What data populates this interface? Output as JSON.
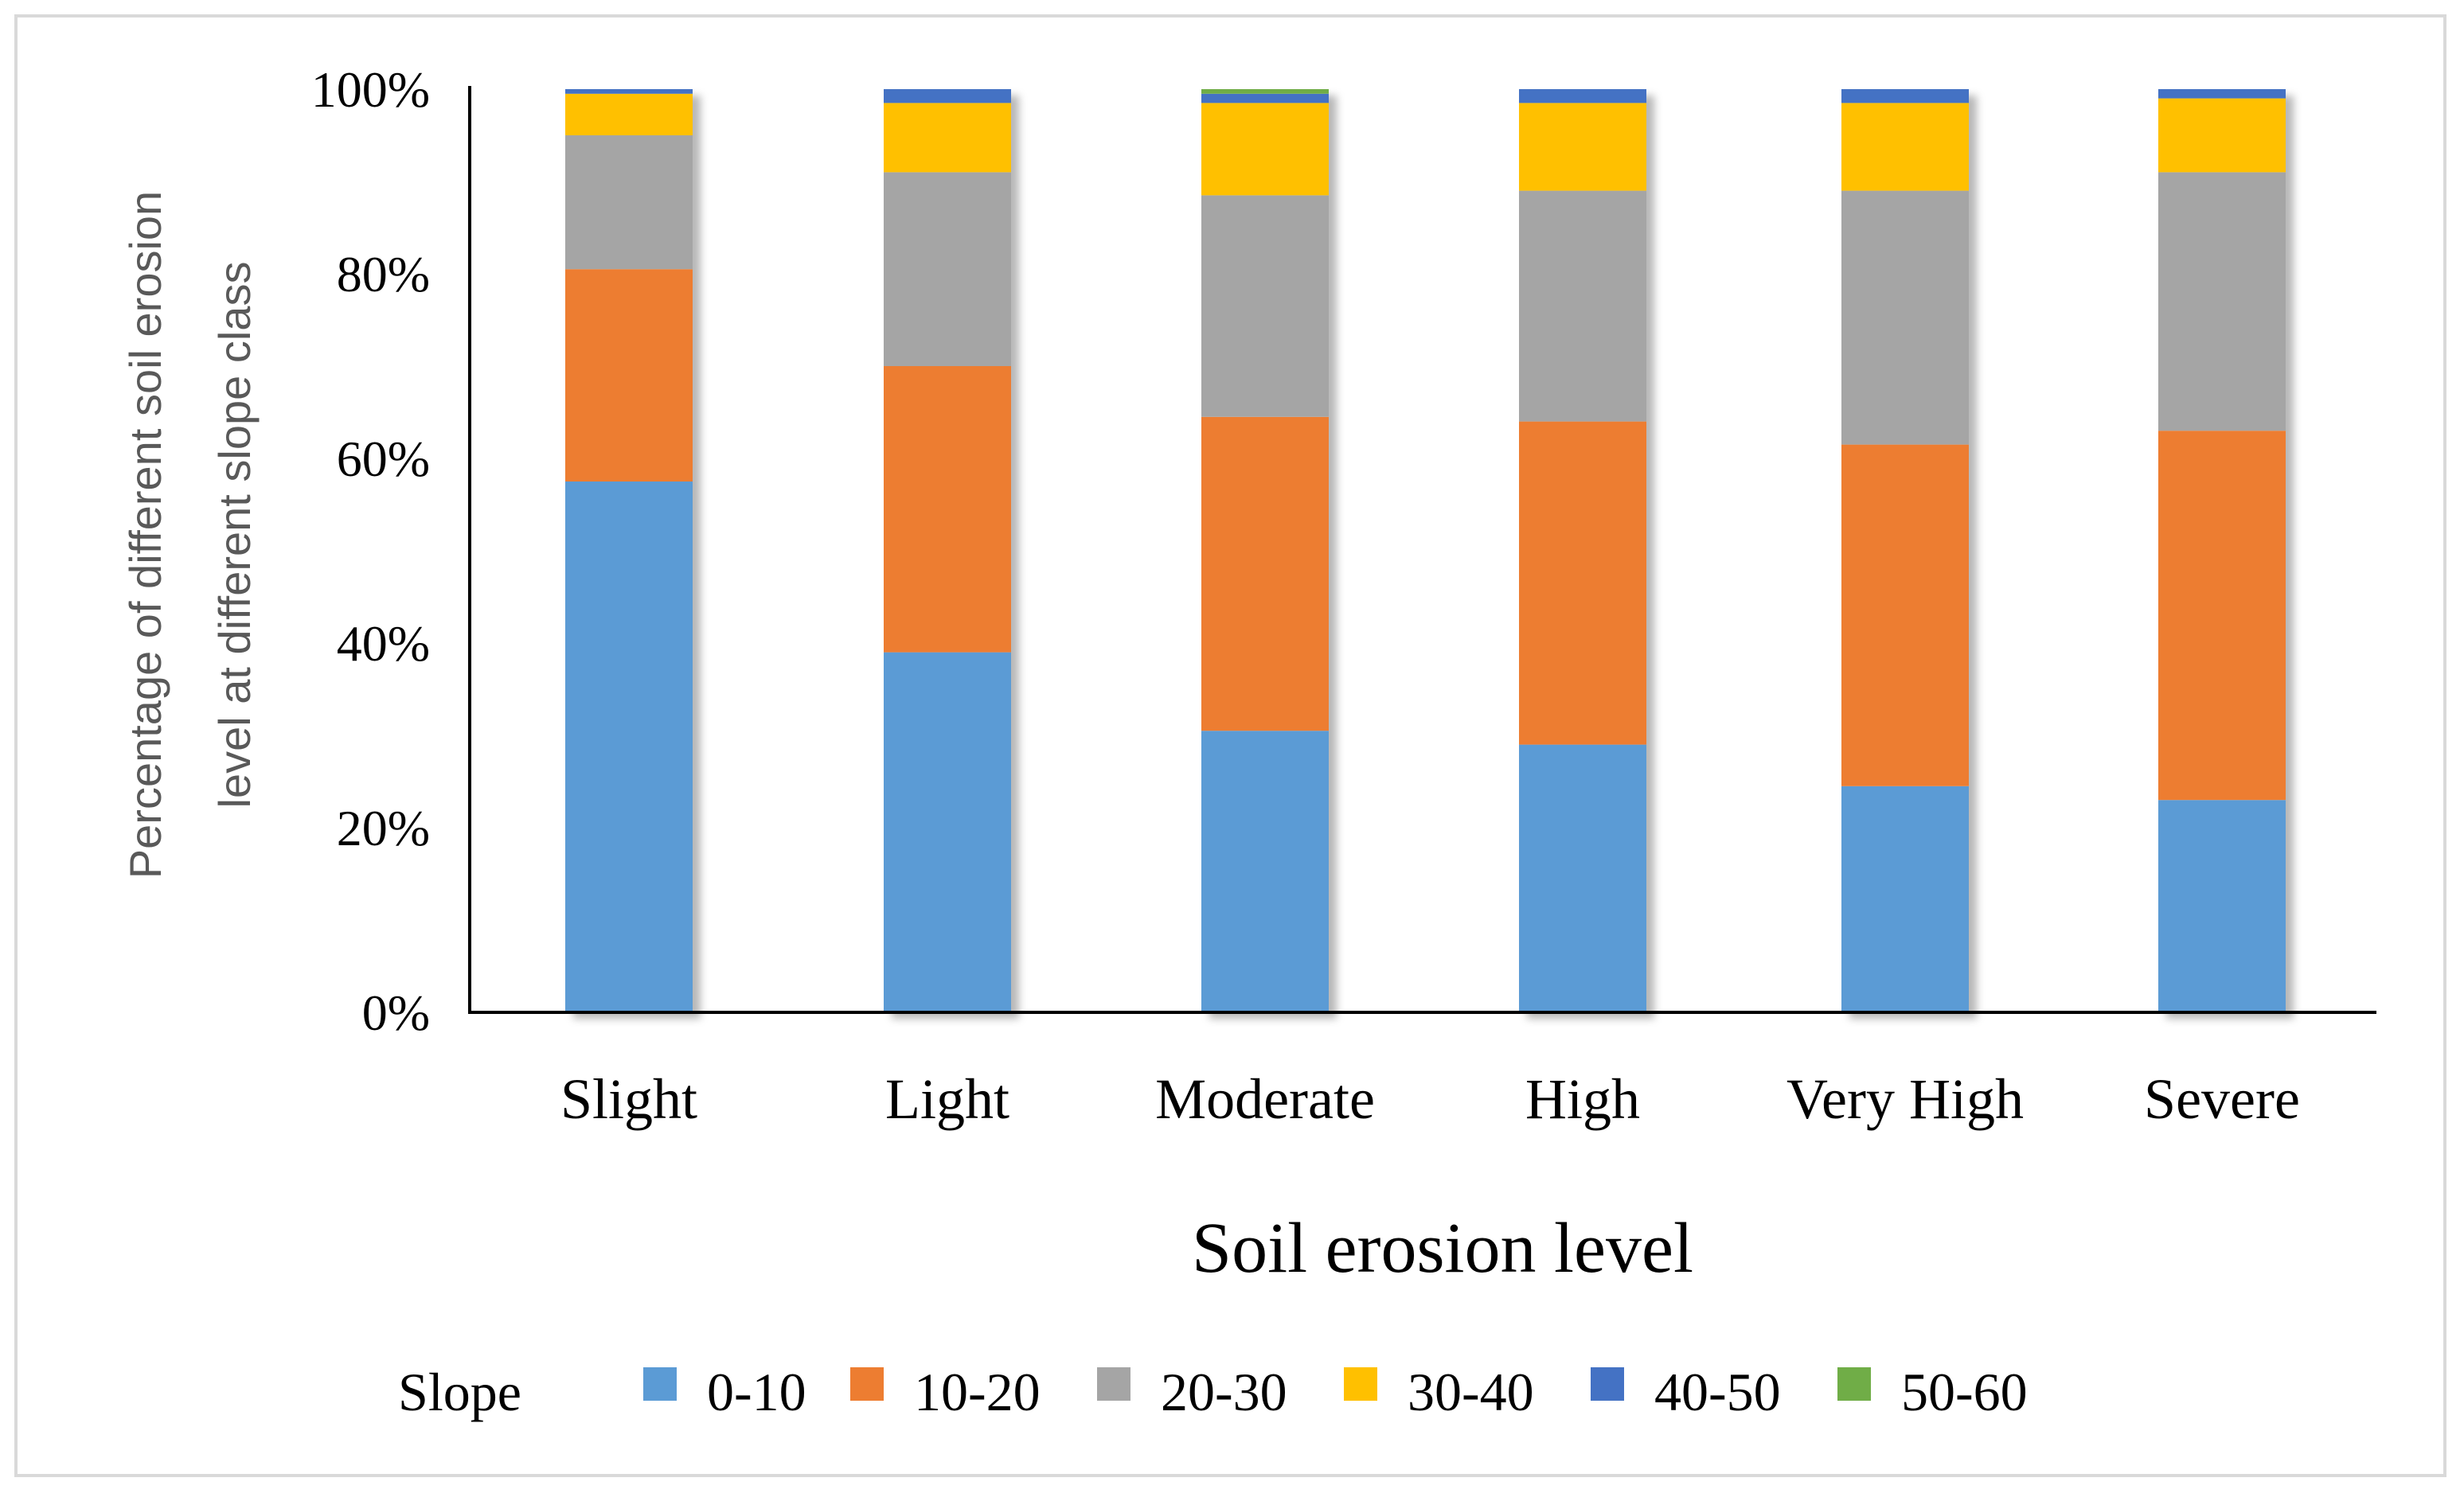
{
  "chart_data": {
    "type": "bar",
    "stacked": true,
    "percent_stacked": true,
    "title": "",
    "xlabel": "Soil erosion level",
    "ylabel_lines": [
      "Percentage of different soil erosion",
      "level at different slope class"
    ],
    "ylim": [
      0,
      100
    ],
    "yticks": [
      "0%",
      "20%",
      "40%",
      "60%",
      "80%",
      "100%"
    ],
    "categories": [
      "Slight",
      "Light",
      "Moderate",
      "High",
      "Very High",
      "Severe"
    ],
    "legend_title": "Slope",
    "legend_position": "bottom",
    "series": [
      {
        "name": "0-10",
        "color": "#5b9bd5",
        "values": [
          57.5,
          39,
          30.5,
          29,
          24.5,
          23
        ]
      },
      {
        "name": "10-20",
        "color": "#ed7d31",
        "values": [
          23,
          31,
          34,
          35,
          37,
          40
        ]
      },
      {
        "name": "20-30",
        "color": "#a5a5a5",
        "values": [
          14.5,
          21,
          24,
          25,
          27.5,
          28
        ]
      },
      {
        "name": "30-40",
        "color": "#ffc000",
        "values": [
          4.5,
          7.5,
          10,
          9.5,
          9.5,
          8
        ]
      },
      {
        "name": "40-50",
        "color": "#4472c4",
        "values": [
          0.5,
          1.5,
          1.0,
          1.5,
          1.5,
          1.0
        ]
      },
      {
        "name": "50-60",
        "color": "#70ad47",
        "values": [
          0,
          0,
          0.5,
          0,
          0,
          0
        ]
      }
    ]
  }
}
